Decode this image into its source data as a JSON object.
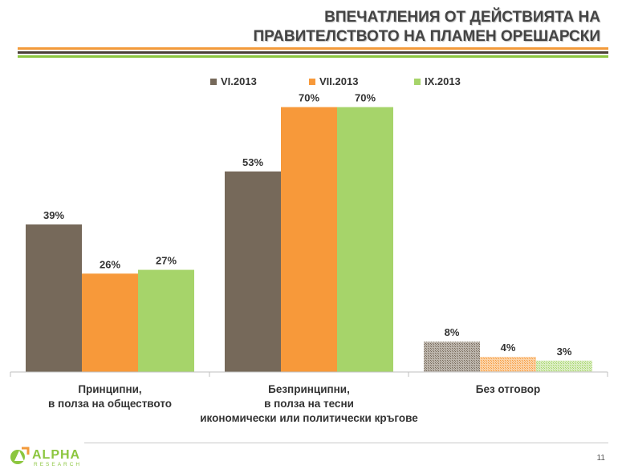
{
  "header": {
    "title_line1": "ВПЕЧАТЛЕНИЯ ОТ ДЕЙСТВИЯТА НА",
    "title_line2": "ПРАВИТЕЛСТВОТО НА ПЛАМЕН ОРЕШАРСКИ",
    "stripe_colors": [
      "#f39a3a",
      "#4a3f37",
      "#8cc63f"
    ]
  },
  "chart_data": {
    "type": "bar",
    "categories": [
      [
        "Принципни,",
        "в полза на обществото"
      ],
      [
        "Безпринципни,",
        "в полза на тесни",
        "икономически или политически кръгове"
      ],
      [
        "Без отговор"
      ]
    ],
    "series": [
      {
        "name": "VI.2013",
        "color": "#76695a",
        "values": [
          39,
          53,
          8
        ],
        "labels": [
          "39%",
          "53%",
          "8%"
        ]
      },
      {
        "name": "VII.2013",
        "color": "#f7993a",
        "values": [
          26,
          70,
          4
        ],
        "labels": [
          "26%",
          "70%",
          "4%"
        ]
      },
      {
        "name": "IX.2013",
        "color": "#a6d46a",
        "values": [
          27,
          70,
          3
        ],
        "labels": [
          "27%",
          "70%",
          "3%"
        ]
      }
    ],
    "ylim": [
      0,
      75
    ],
    "grid": false,
    "legend_position": "top"
  },
  "footer": {
    "logo_text": "ALPHA",
    "logo_subtext": "RESEARCH",
    "page_number": "11"
  }
}
